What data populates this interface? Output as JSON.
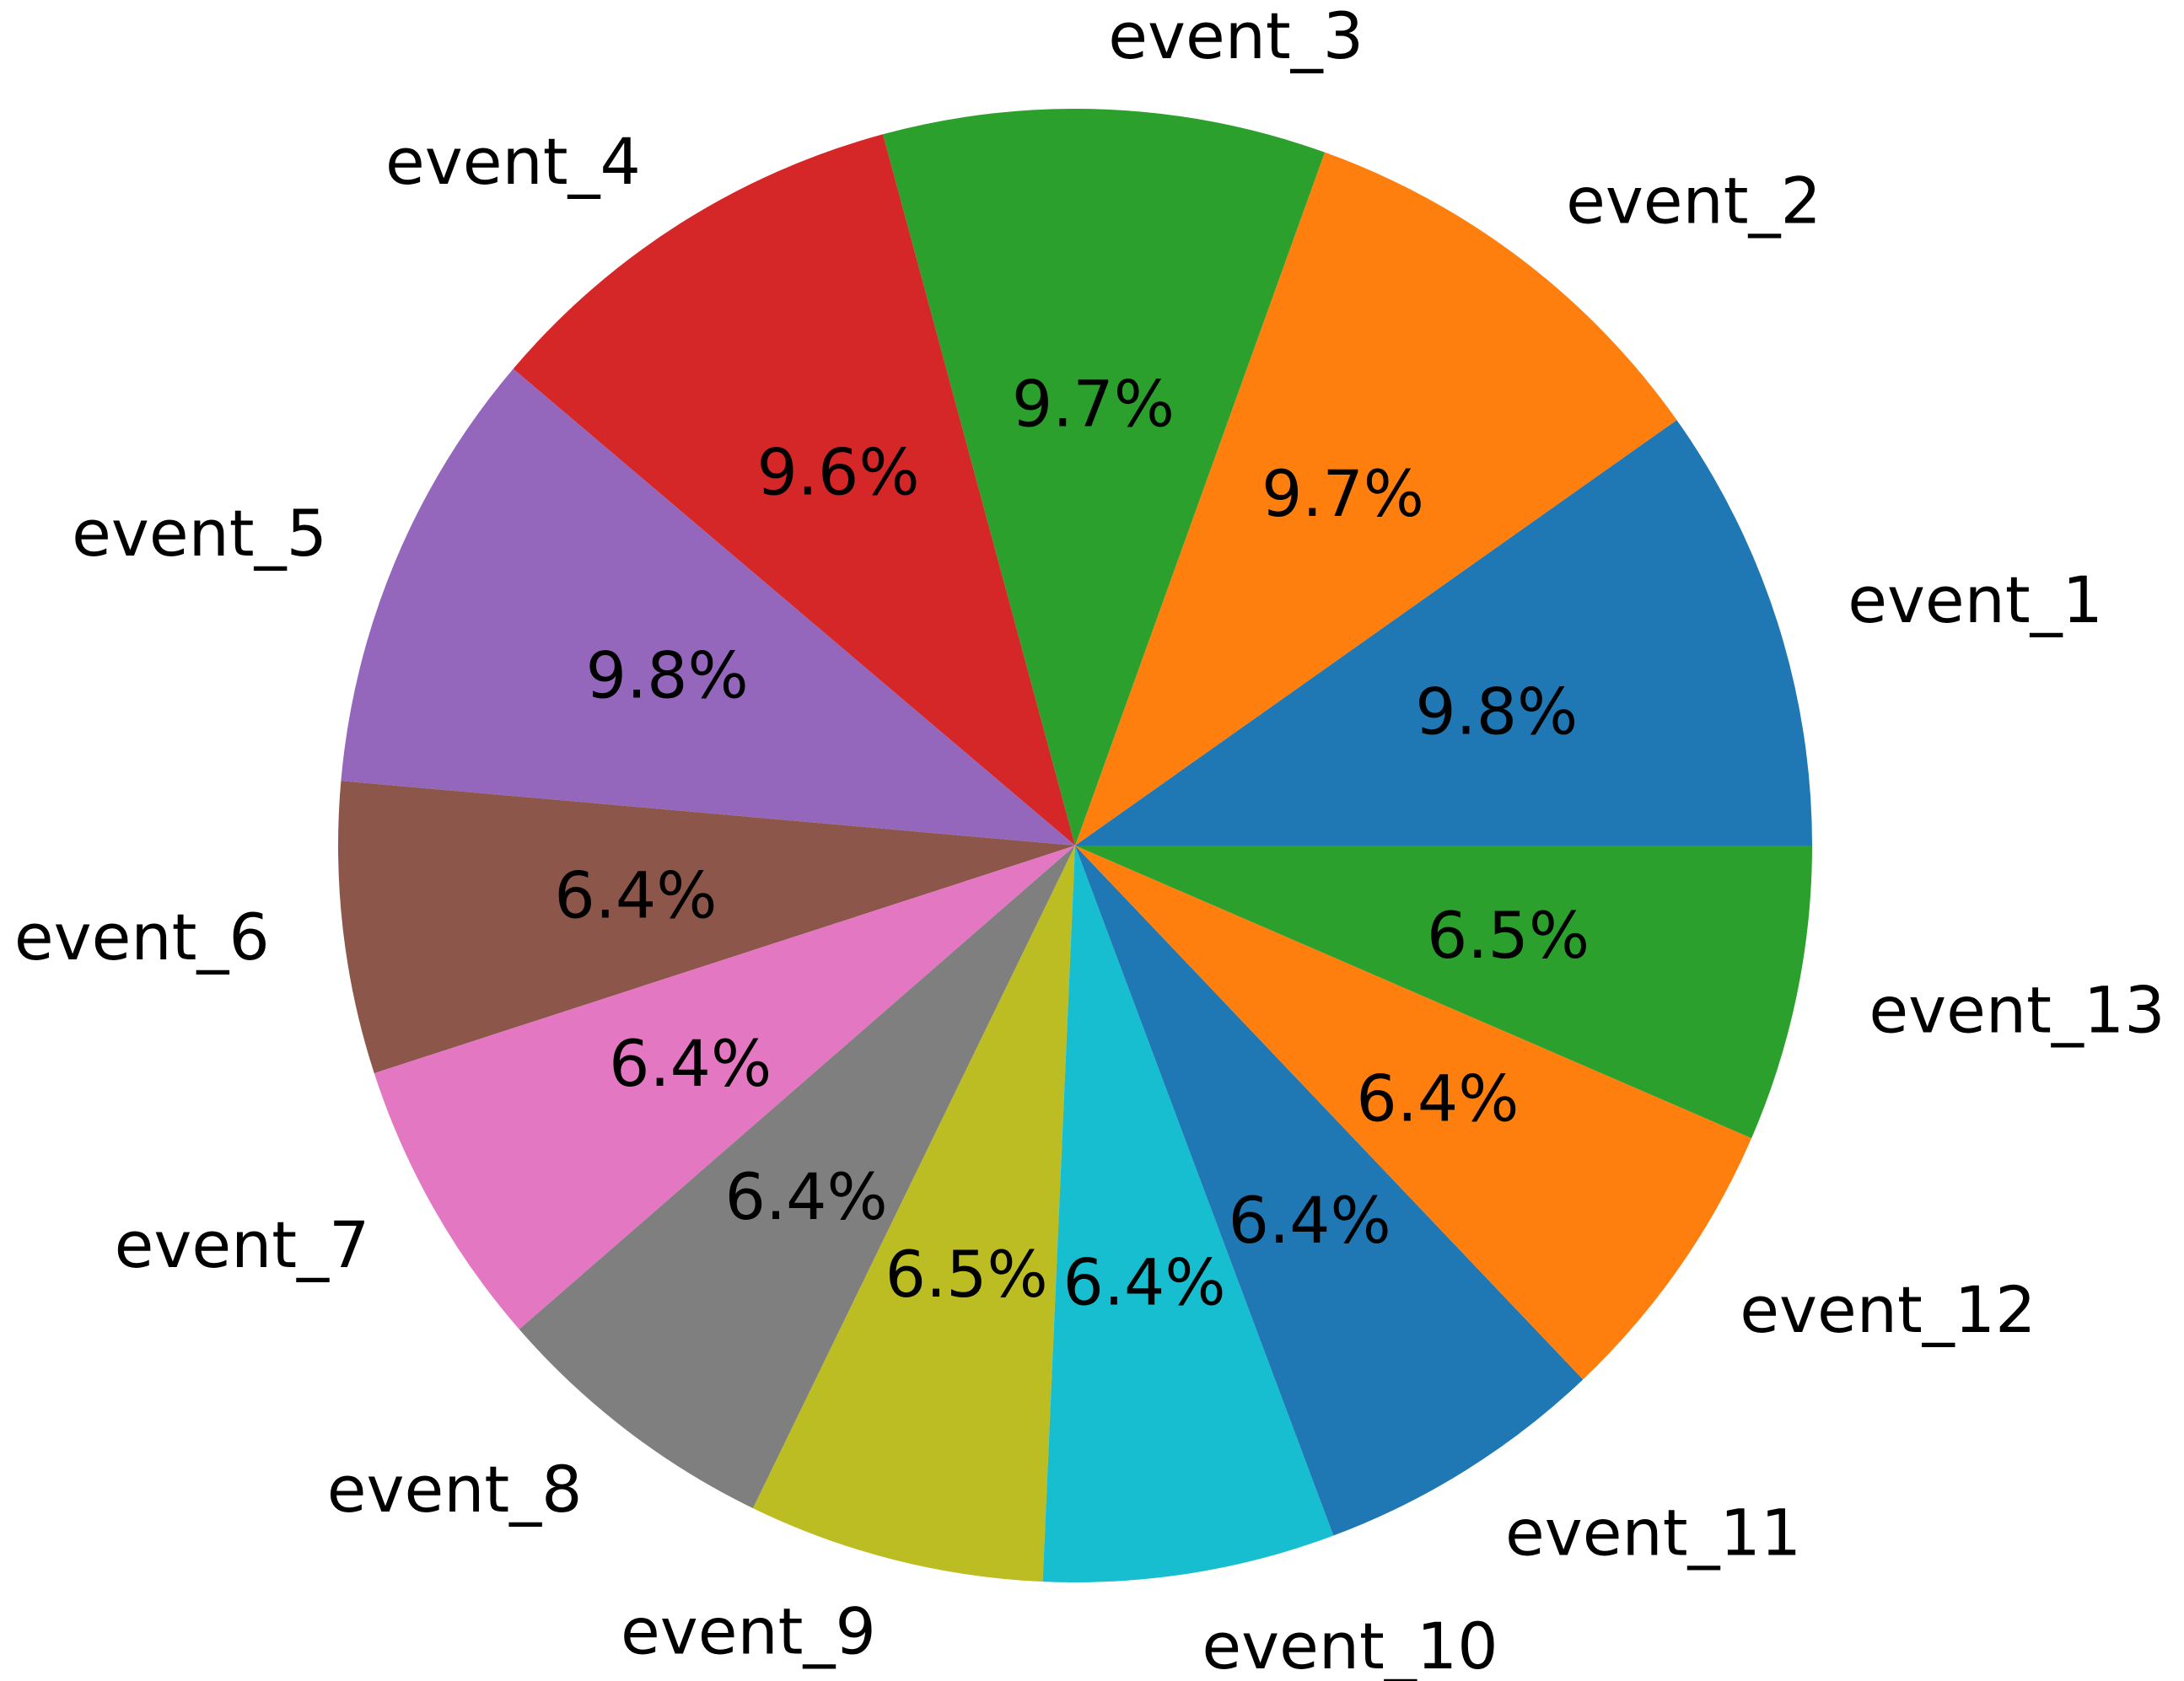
{
  "chart_data": {
    "type": "pie",
    "labels": [
      "event_1",
      "event_2",
      "event_3",
      "event_4",
      "event_5",
      "event_6",
      "event_7",
      "event_8",
      "event_9",
      "event_10",
      "event_11",
      "event_12",
      "event_13"
    ],
    "values": [
      9.8,
      9.7,
      9.7,
      9.6,
      9.8,
      6.4,
      6.4,
      6.4,
      6.5,
      6.4,
      6.4,
      6.4,
      6.5
    ],
    "value_labels": [
      "9.8%",
      "9.7%",
      "9.7%",
      "9.6%",
      "9.8%",
      "6.4%",
      "6.4%",
      "6.4%",
      "6.5%",
      "6.4%",
      "6.4%",
      "6.4%",
      "6.5%"
    ],
    "colors": [
      "#1f77b4",
      "#ff7f0e",
      "#2ca02c",
      "#d62728",
      "#9467bd",
      "#8c564b",
      "#e377c2",
      "#7f7f7f",
      "#bcbd22",
      "#17becf",
      "#1f77b4",
      "#ff7f0e",
      "#2ca02c"
    ],
    "start_angle_deg": 0,
    "direction": "counterclockwise",
    "legend": "none",
    "title": ""
  }
}
